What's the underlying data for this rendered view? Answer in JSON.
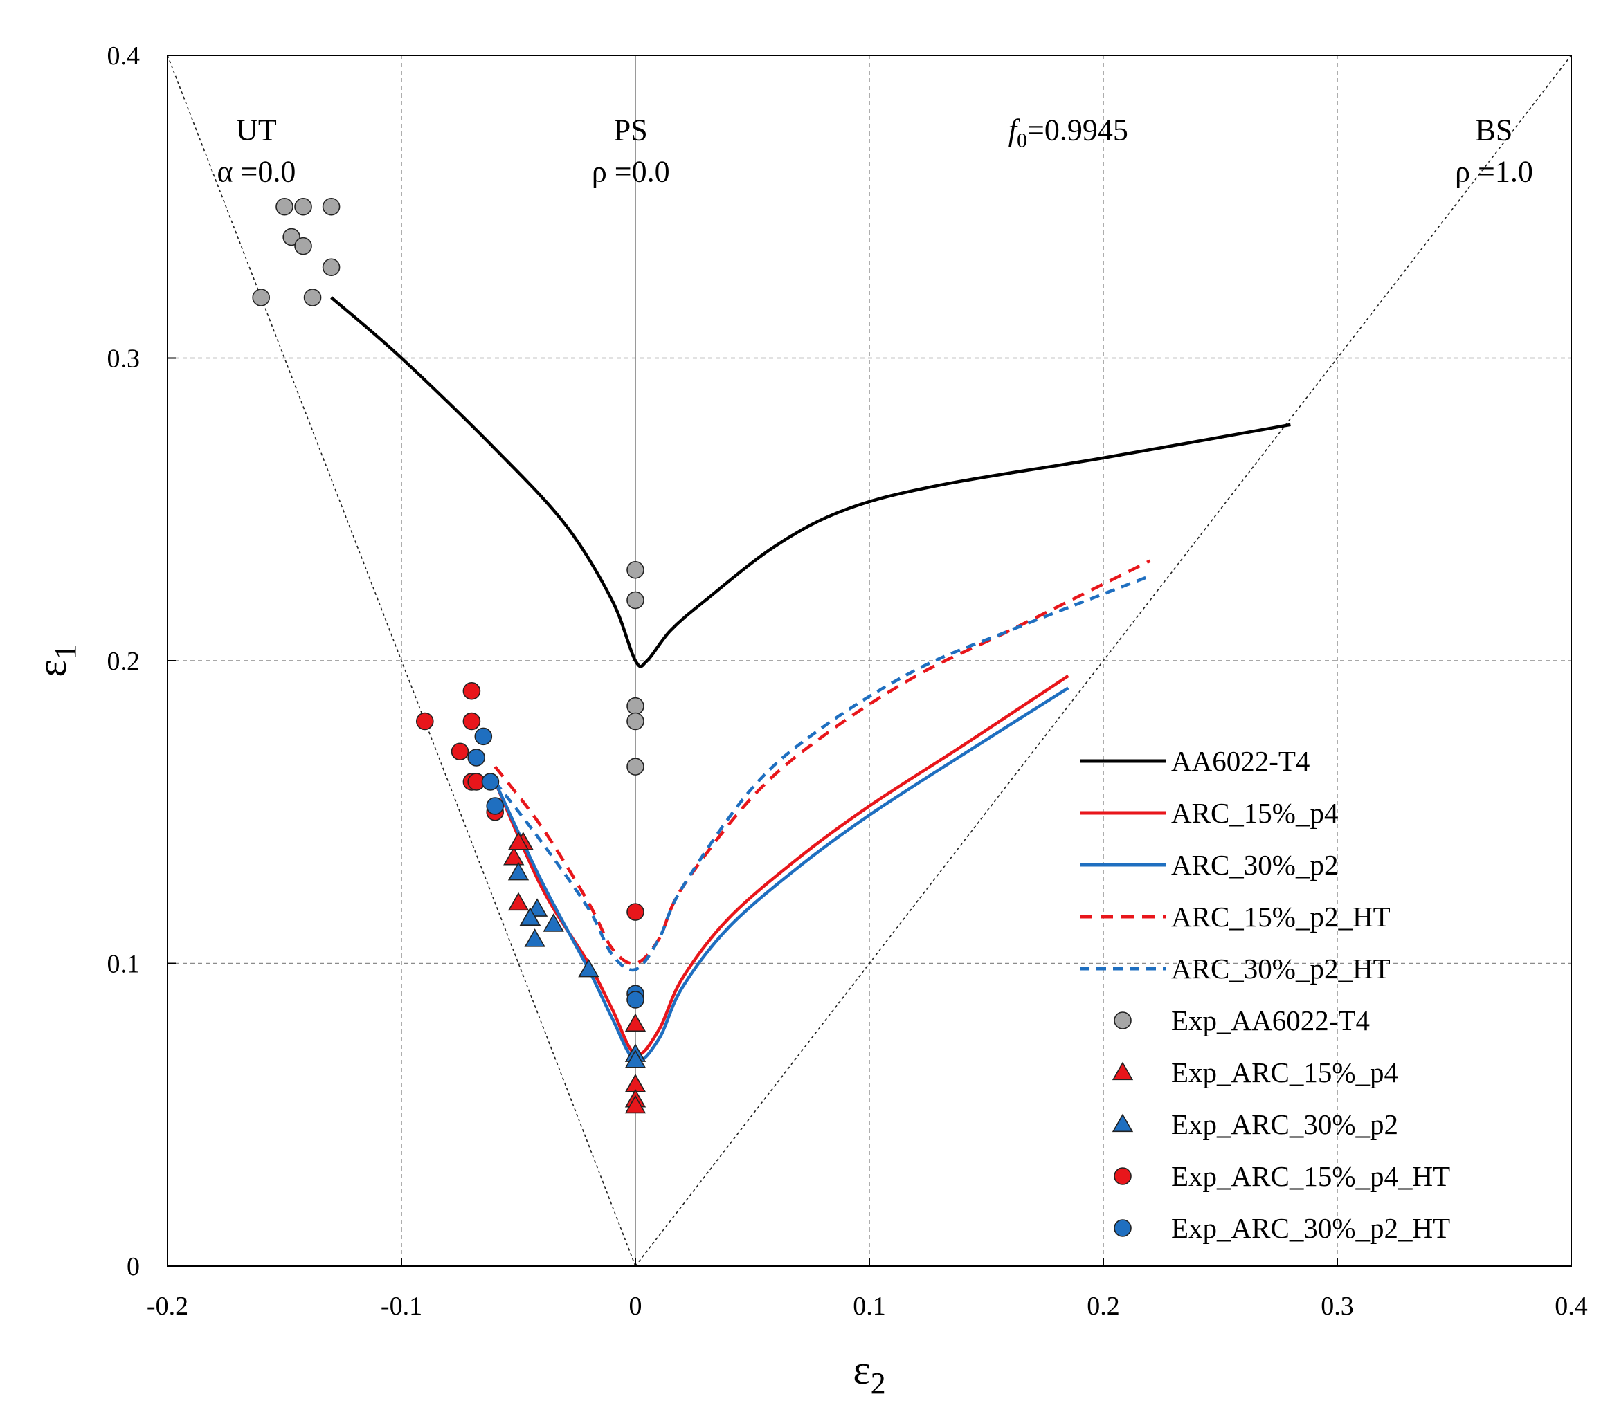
{
  "chart_data": {
    "type": "line",
    "title": "",
    "xlabel": "ε",
    "xlabel_sub": "2",
    "ylabel": "ε",
    "ylabel_sub": "1",
    "xlim": [
      -0.2,
      0.4
    ],
    "ylim": [
      0,
      0.4
    ],
    "xticks": [
      -0.2,
      -0.1,
      0,
      0.1,
      0.2,
      0.3,
      0.4
    ],
    "yticks": [
      0,
      0.1,
      0.2,
      0.3,
      0.4
    ],
    "xtick_labels": [
      "-0.2",
      "-0.1",
      "0",
      "0.1",
      "0.2",
      "0.3",
      "0.4"
    ],
    "ytick_labels": [
      "0",
      "0.1",
      "0.2",
      "0.3",
      "0.4"
    ],
    "grid": true,
    "colors": {
      "black": "#000000",
      "red": "#e8161b",
      "blue": "#1f6fc0",
      "grey": "#a6a6a6"
    },
    "annotations": [
      {
        "id": "ut",
        "lines": [
          "UT",
          "α =0.0"
        ],
        "x": -0.162,
        "y": 0.372
      },
      {
        "id": "ps",
        "lines": [
          "PS",
          "ρ =0.0"
        ],
        "x": -0.002,
        "y": 0.372
      },
      {
        "id": "f0",
        "prefix": "f",
        "sub": "0",
        "text": "=0.9945",
        "x": 0.185,
        "y": 0.372
      },
      {
        "id": "bs",
        "lines": [
          "BS",
          "ρ =1.0"
        ],
        "x": 0.367,
        "y": 0.372
      }
    ],
    "reference_lines": [
      {
        "name": "uniaxial-tension-line",
        "x": [
          -0.2,
          0
        ],
        "y": [
          0.4,
          0
        ]
      },
      {
        "name": "biaxial-stretch-line",
        "x": [
          0,
          0.4
        ],
        "y": [
          0,
          0.4
        ]
      },
      {
        "name": "plane-strain-line",
        "x": [
          0,
          0
        ],
        "y": [
          0,
          0.4
        ]
      }
    ],
    "series": [
      {
        "name": "AA6022-T4",
        "kind": "line",
        "color": "#000000",
        "dash": "",
        "x": [
          -0.13,
          -0.1,
          -0.06,
          -0.03,
          -0.01,
          0,
          0.005,
          0.015,
          0.03,
          0.06,
          0.09,
          0.13,
          0.2,
          0.28
        ],
        "y": [
          0.32,
          0.3,
          0.27,
          0.245,
          0.22,
          0.2,
          0.2,
          0.21,
          0.22,
          0.238,
          0.25,
          0.258,
          0.267,
          0.278
        ]
      },
      {
        "name": "ARC_15%_p4",
        "kind": "line",
        "color": "#e8161b",
        "dash": "",
        "x": [
          -0.06,
          -0.04,
          -0.02,
          -0.01,
          0,
          0.01,
          0.02,
          0.04,
          0.07,
          0.1,
          0.14,
          0.185
        ],
        "y": [
          0.16,
          0.125,
          0.1,
          0.085,
          0.07,
          0.078,
          0.095,
          0.115,
          0.135,
          0.152,
          0.172,
          0.195
        ]
      },
      {
        "name": "ARC_30%_p2",
        "kind": "line",
        "color": "#1f6fc0",
        "dash": "",
        "x": [
          -0.06,
          -0.04,
          -0.02,
          -0.01,
          0,
          0.01,
          0.02,
          0.04,
          0.07,
          0.1,
          0.14,
          0.185
        ],
        "y": [
          0.16,
          0.127,
          0.098,
          0.082,
          0.068,
          0.075,
          0.092,
          0.112,
          0.132,
          0.149,
          0.169,
          0.191
        ]
      },
      {
        "name": "ARC_15%_p2_HT",
        "kind": "line",
        "color": "#e8161b",
        "dash": "18 12",
        "x": [
          -0.06,
          -0.04,
          -0.02,
          -0.01,
          0,
          0.01,
          0.02,
          0.05,
          0.08,
          0.12,
          0.16,
          0.22
        ],
        "y": [
          0.165,
          0.145,
          0.12,
          0.105,
          0.1,
          0.108,
          0.125,
          0.155,
          0.175,
          0.195,
          0.21,
          0.233
        ]
      },
      {
        "name": "ARC_30%_p2_HT",
        "kind": "line",
        "color": "#1f6fc0",
        "dash": "14 10",
        "x": [
          -0.06,
          -0.04,
          -0.02,
          -0.01,
          0,
          0.01,
          0.02,
          0.05,
          0.08,
          0.12,
          0.16,
          0.22
        ],
        "y": [
          0.16,
          0.14,
          0.118,
          0.103,
          0.098,
          0.108,
          0.125,
          0.158,
          0.178,
          0.197,
          0.21,
          0.228
        ]
      },
      {
        "name": "Exp_AA6022-T4",
        "kind": "scatter",
        "marker": "circle",
        "color": "#a6a6a6",
        "x": [
          -0.16,
          -0.15,
          -0.142,
          -0.13,
          -0.147,
          -0.142,
          -0.13,
          -0.138,
          0,
          0,
          0,
          0,
          0
        ],
        "y": [
          0.32,
          0.35,
          0.35,
          0.35,
          0.34,
          0.337,
          0.33,
          0.32,
          0.23,
          0.22,
          0.185,
          0.18,
          0.165
        ]
      },
      {
        "name": "Exp_ARC_15%_p4",
        "kind": "scatter",
        "marker": "triangle",
        "color": "#e8161b",
        "x": [
          -0.052,
          -0.048,
          -0.05,
          -0.05,
          0,
          0,
          0,
          0,
          0
        ],
        "y": [
          0.135,
          0.14,
          0.14,
          0.12,
          0.08,
          0.06,
          0.06,
          0.055,
          0.053
        ]
      },
      {
        "name": "Exp_ARC_30%_p2",
        "kind": "scatter",
        "marker": "triangle",
        "color": "#1f6fc0",
        "x": [
          -0.05,
          -0.045,
          -0.042,
          -0.045,
          -0.043,
          -0.035,
          -0.02,
          0,
          0
        ],
        "y": [
          0.13,
          0.115,
          0.118,
          0.115,
          0.108,
          0.113,
          0.098,
          0.07,
          0.068
        ]
      },
      {
        "name": "Exp_ARC_15%_p4_HT",
        "kind": "scatter",
        "marker": "circle",
        "color": "#e8161b",
        "x": [
          -0.09,
          -0.075,
          -0.07,
          -0.07,
          -0.07,
          -0.068,
          -0.06,
          0
        ],
        "y": [
          0.18,
          0.17,
          0.19,
          0.18,
          0.16,
          0.16,
          0.15,
          0.117
        ]
      },
      {
        "name": "Exp_ARC_30%_p2_HT",
        "kind": "scatter",
        "marker": "circle",
        "color": "#1f6fc0",
        "x": [
          -0.065,
          -0.068,
          -0.062,
          -0.06,
          0,
          0
        ],
        "y": [
          0.175,
          0.168,
          0.16,
          0.152,
          0.09,
          0.088
        ]
      }
    ],
    "legend": {
      "position": "bottom-right",
      "entries": [
        {
          "label": "AA6022-T4",
          "series": 0
        },
        {
          "label": "ARC_15%_p4",
          "series": 1
        },
        {
          "label": "ARC_30%_p2",
          "series": 2
        },
        {
          "label": "ARC_15%_p2_HT",
          "series": 3
        },
        {
          "label": "ARC_30%_p2_HT",
          "series": 4
        },
        {
          "label": "Exp_AA6022-T4",
          "series": 5
        },
        {
          "label": "Exp_ARC_15%_p4",
          "series": 6
        },
        {
          "label": "Exp_ARC_30%_p2",
          "series": 7
        },
        {
          "label": "Exp_ARC_15%_p4_HT",
          "series": 8
        },
        {
          "label": "Exp_ARC_30%_p2_HT",
          "series": 9
        }
      ]
    }
  }
}
